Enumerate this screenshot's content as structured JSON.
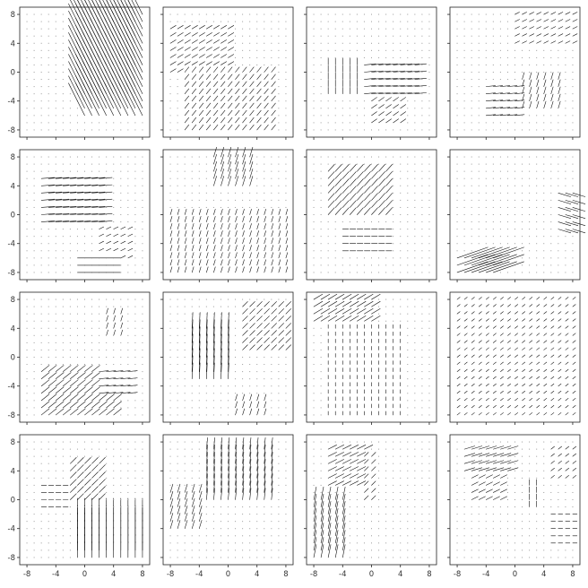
{
  "chart_data": {
    "type": "quiver",
    "layout": {
      "rows": 4,
      "cols": 4
    },
    "xlim": [
      -9,
      9
    ],
    "ylim": [
      -9,
      9
    ],
    "xticks": [
      -8,
      -4,
      0,
      4,
      8
    ],
    "yticks": [
      -8,
      -4,
      0,
      4,
      8
    ],
    "xtick_labels": [
      "-8",
      "-4",
      "0",
      "4",
      "8"
    ],
    "ytick_labels": [
      "-8",
      "-4",
      "0",
      "4",
      "8"
    ],
    "grid_step": 1,
    "shared_axes": true,
    "grid": false,
    "legend": "none",
    "arrow_color": "#111111",
    "panels": [
      {
        "row": 0,
        "col": 0,
        "patches": [
          {
            "x": [
              0,
              8
            ],
            "y": [
              -6,
              8
            ],
            "dir": [
              1.0,
              2.0
            ],
            "len": 5.5
          },
          {
            "x": [
              0,
              8
            ],
            "y": [
              -6,
              8
            ],
            "dir": [
              -0.8,
              1.6
            ],
            "len": 5.0
          }
        ]
      },
      {
        "row": 0,
        "col": 1,
        "patches": [
          {
            "x": [
              -8,
              0
            ],
            "y": [
              0,
              6
            ],
            "dir": [
              1,
              0.6
            ],
            "len": 0.9
          },
          {
            "x": [
              -6,
              6
            ],
            "y": [
              -8,
              0
            ],
            "dir": [
              0.8,
              1
            ],
            "len": 0.9
          }
        ]
      },
      {
        "row": 0,
        "col": 2,
        "patches": [
          {
            "x": [
              -2,
              6
            ],
            "y": [
              -3,
              1
            ],
            "dir": [
              1,
              0.1
            ],
            "len": 1.6
          },
          {
            "x": [
              -6,
              -2
            ],
            "y": [
              -3,
              1
            ],
            "dir": [
              0,
              1
            ],
            "len": 0.9
          },
          {
            "x": [
              0,
              4
            ],
            "y": [
              -7,
              -4
            ],
            "dir": [
              1,
              0.7
            ],
            "len": 0.9
          }
        ]
      },
      {
        "row": 0,
        "col": 3,
        "patches": [
          {
            "x": [
              -4,
              0
            ],
            "y": [
              -6,
              -2
            ],
            "dir": [
              1,
              0.1
            ],
            "len": 1.3
          },
          {
            "x": [
              1,
              6
            ],
            "y": [
              -5,
              -1
            ],
            "dir": [
              0.3,
              1
            ],
            "len": 1.0
          },
          {
            "x": [
              0,
              8
            ],
            "y": [
              4,
              8
            ],
            "dir": [
              1,
              0.5
            ],
            "len": 0.7
          }
        ]
      },
      {
        "row": 1,
        "col": 0,
        "patches": [
          {
            "x": [
              -6,
              2
            ],
            "y": [
              -1,
              5
            ],
            "dir": [
              1,
              0.08
            ],
            "len": 1.8
          },
          {
            "x": [
              2,
              6
            ],
            "y": [
              -6,
              -2
            ],
            "dir": [
              1,
              0.5
            ],
            "len": 0.7
          },
          {
            "x": [
              -1,
              4
            ],
            "y": [
              -8,
              -6
            ],
            "dir": [
              1,
              0
            ],
            "len": 1.0
          }
        ]
      },
      {
        "row": 1,
        "col": 1,
        "patches": [
          {
            "x": [
              -2,
              3
            ],
            "y": [
              4,
              8
            ],
            "dir": [
              0.3,
              1
            ],
            "len": 1.4
          },
          {
            "x": [
              -8,
              8
            ],
            "y": [
              -8,
              0
            ],
            "dir": [
              0.3,
              1
            ],
            "len": 0.8
          }
        ]
      },
      {
        "row": 1,
        "col": 2,
        "patches": [
          {
            "x": [
              -6,
              2
            ],
            "y": [
              0,
              6
            ],
            "dir": [
              0.9,
              1
            ],
            "len": 1.3
          },
          {
            "x": [
              -4,
              2
            ],
            "y": [
              -5,
              -2
            ],
            "dir": [
              1,
              0
            ],
            "len": 0.8
          }
        ]
      },
      {
        "row": 1,
        "col": 3,
        "patches": [
          {
            "x": [
              -8,
              -3
            ],
            "y": [
              -8,
              -6
            ],
            "dir": [
              1,
              0.35
            ],
            "len": 4.5
          },
          {
            "x": [
              6,
              8
            ],
            "y": [
              -2,
              3
            ],
            "dir": [
              1,
              -0.3
            ],
            "len": 1.8
          }
        ]
      },
      {
        "row": 2,
        "col": 0,
        "patches": [
          {
            "x": [
              -6,
              4
            ],
            "y": [
              -8,
              -2
            ],
            "dir": [
              1,
              0.8
            ],
            "len": 1.4
          },
          {
            "x": [
              2,
              6
            ],
            "y": [
              -5,
              -2
            ],
            "dir": [
              1,
              0.1
            ],
            "len": 1.3
          },
          {
            "x": [
              3,
              5
            ],
            "y": [
              3,
              6
            ],
            "dir": [
              0.3,
              1
            ],
            "len": 0.8
          }
        ]
      },
      {
        "row": 2,
        "col": 1,
        "patches": [
          {
            "x": [
              -5,
              0
            ],
            "y": [
              -3,
              4
            ],
            "dir": [
              0.05,
              1
            ],
            "len": 2.2
          },
          {
            "x": [
              2,
              8
            ],
            "y": [
              1,
              7
            ],
            "dir": [
              1,
              1
            ],
            "len": 1.0
          },
          {
            "x": [
              1,
              5
            ],
            "y": [
              -8,
              -6
            ],
            "dir": [
              0.3,
              1
            ],
            "len": 0.9
          }
        ]
      },
      {
        "row": 2,
        "col": 2,
        "patches": [
          {
            "x": [
              -8,
              0
            ],
            "y": [
              5,
              8
            ],
            "dir": [
              1,
              0.6
            ],
            "len": 1.4
          },
          {
            "x": [
              -3,
              4
            ],
            "y": [
              -2,
              2
            ],
            "dir": [
              1,
              0.1
            ],
            "len": 1.4
          },
          {
            "x": [
              -6,
              4
            ],
            "y": [
              -8,
              4
            ],
            "dir": [
              0,
              1
            ],
            "len": 0.5
          }
        ]
      },
      {
        "row": 2,
        "col": 3,
        "patches": [
          {
            "x": [
              0,
              8
            ],
            "y": [
              -4,
              4
            ],
            "dir": [
              0.3,
              1
            ],
            "len": 1.6
          },
          {
            "x": [
              -8,
              8
            ],
            "y": [
              -8,
              8
            ],
            "dir": [
              1,
              0.8
            ],
            "len": 0.5
          }
        ]
      },
      {
        "row": 3,
        "col": 0,
        "patches": [
          {
            "x": [
              -2,
              2
            ],
            "y": [
              0,
              5
            ],
            "dir": [
              1,
              1
            ],
            "len": 1.2
          },
          {
            "x": [
              -6,
              -3
            ],
            "y": [
              -1,
              2
            ],
            "dir": [
              1,
              0
            ],
            "len": 0.7
          },
          {
            "x": [
              -1,
              8
            ],
            "y": [
              -8,
              -2
            ],
            "dir": [
              0,
              1
            ],
            "len": 2.2
          }
        ]
      },
      {
        "row": 3,
        "col": 1,
        "patches": [
          {
            "x": [
              -3,
              6
            ],
            "y": [
              0,
              7
            ],
            "dir": [
              0.1,
              1
            ],
            "len": 1.6
          },
          {
            "x": [
              -8,
              -4
            ],
            "y": [
              -4,
              1
            ],
            "dir": [
              0.3,
              1
            ],
            "len": 1.2
          }
        ]
      },
      {
        "row": 3,
        "col": 2,
        "patches": [
          {
            "x": [
              -8,
              -4
            ],
            "y": [
              -8,
              0
            ],
            "dir": [
              0.2,
              1
            ],
            "len": 1.8
          },
          {
            "x": [
              -6,
              -1
            ],
            "y": [
              2,
              7
            ],
            "dir": [
              1,
              0.5
            ],
            "len": 1.3
          },
          {
            "x": [
              -1,
              0
            ],
            "y": [
              0,
              6
            ],
            "dir": [
              1,
              1
            ],
            "len": 0.8
          }
        ]
      },
      {
        "row": 3,
        "col": 3,
        "patches": [
          {
            "x": [
              -7,
              -1
            ],
            "y": [
              4,
              7
            ],
            "dir": [
              1,
              0.3
            ],
            "len": 1.5
          },
          {
            "x": [
              -6,
              -2
            ],
            "y": [
              0,
              3
            ],
            "dir": [
              1,
              0.5
            ],
            "len": 1.0
          },
          {
            "x": [
              2,
              3
            ],
            "y": [
              -1,
              2
            ],
            "dir": [
              0,
              1
            ],
            "len": 0.8
          },
          {
            "x": [
              5,
              8
            ],
            "y": [
              -6,
              -2
            ],
            "dir": [
              1,
              0
            ],
            "len": 0.6
          },
          {
            "x": [
              5,
              8
            ],
            "y": [
              3,
              7
            ],
            "dir": [
              1,
              0.8
            ],
            "len": 0.6
          }
        ]
      }
    ]
  }
}
